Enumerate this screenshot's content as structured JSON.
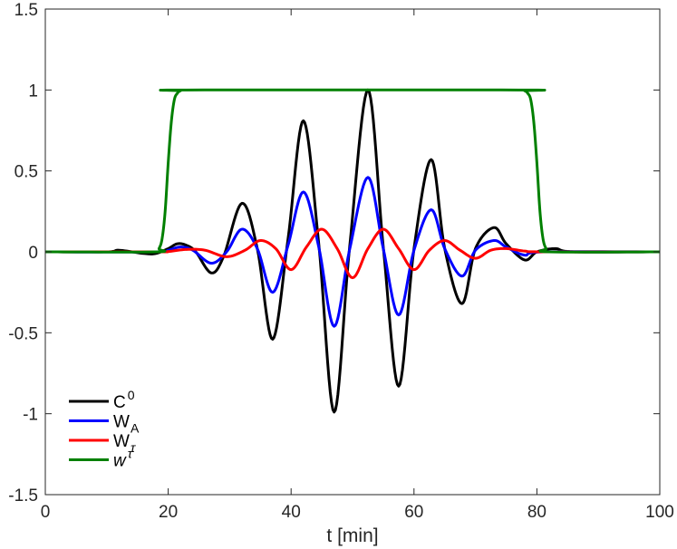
{
  "chart_data": {
    "type": "line",
    "xlabel": "t [min]",
    "ylabel": "",
    "title": "",
    "xlim": [
      0,
      100
    ],
    "ylim": [
      -1.5,
      1.5
    ],
    "xticks": [
      "0",
      "20",
      "40",
      "60",
      "80",
      "100"
    ],
    "yticks": [
      "1.5",
      "1",
      "0.5",
      "0",
      "-0.5",
      "-1",
      "-1.5"
    ],
    "grid": false,
    "legend_position": "bottom-left",
    "series": [
      {
        "name": "C0",
        "legend_main": "C",
        "legend_sup": "0",
        "color": "#000000",
        "x": [
          0,
          10,
          12,
          16,
          18,
          20,
          21.5,
          23,
          24.5,
          27,
          29,
          32,
          34.5,
          37,
          39.5,
          42,
          44.5,
          47,
          49.5,
          52.5,
          55,
          57.5,
          60,
          62.8,
          65,
          67.8,
          70,
          73,
          75,
          78,
          80,
          83,
          86,
          100
        ],
        "y": [
          0,
          0,
          0.01,
          -0.01,
          -0.01,
          0.02,
          0.05,
          0.04,
          0,
          -0.13,
          -0.03,
          0.3,
          0.02,
          -0.54,
          0.08,
          0.81,
          0.05,
          -0.99,
          0.02,
          1.0,
          0.03,
          -0.83,
          0.02,
          0.57,
          0.02,
          -0.32,
          0.02,
          0.15,
          0.05,
          -0.05,
          0,
          0.02,
          0,
          0
        ]
      },
      {
        "name": "WA",
        "legend_main": "W",
        "legend_sub": "A",
        "color": "#0000ff",
        "x": [
          0,
          18,
          20,
          22,
          24,
          27,
          29.5,
          32,
          34.5,
          37,
          39.5,
          42,
          44.5,
          47,
          49.5,
          52.5,
          55,
          57.5,
          60,
          62.8,
          65,
          67.8,
          70,
          73,
          75,
          78,
          81,
          100
        ],
        "y": [
          0,
          0,
          0.01,
          0.03,
          0.01,
          -0.07,
          0,
          0.14,
          0.02,
          -0.25,
          0.04,
          0.37,
          0.03,
          -0.46,
          0.01,
          0.46,
          0.02,
          -0.39,
          0.01,
          0.26,
          0.02,
          -0.15,
          0.01,
          0.07,
          0.03,
          -0.02,
          0,
          0
        ]
      },
      {
        "name": "Wτ",
        "legend_main": "W",
        "legend_sub": "τ",
        "color": "#ff0000",
        "x": [
          0,
          18,
          20,
          23,
          26,
          29.5,
          32.5,
          35,
          37.5,
          40,
          42.5,
          45,
          47.5,
          50,
          52.5,
          55,
          57.5,
          60,
          62.5,
          65,
          67.5,
          70,
          72.5,
          75,
          78,
          81,
          100
        ],
        "y": [
          0,
          0,
          0.002,
          0.015,
          0.01,
          -0.03,
          0.01,
          0.07,
          0.02,
          -0.11,
          0.03,
          0.14,
          0.02,
          -0.16,
          0.02,
          0.14,
          0.02,
          -0.11,
          0.01,
          0.07,
          0.01,
          -0.04,
          0.01,
          0.02,
          0.005,
          0,
          0
        ]
      },
      {
        "name": "w",
        "legend_main": "w",
        "legend_sup": "τ",
        "color": "#008000",
        "x": [
          0,
          18,
          18.5,
          19,
          19.5,
          20,
          20.5,
          21,
          21.5,
          22,
          23,
          77,
          78,
          78.5,
          79,
          79.5,
          80,
          80.5,
          81,
          81.5,
          82,
          100
        ],
        "y": [
          0,
          0,
          0.02,
          0.08,
          0.25,
          0.55,
          0.8,
          0.94,
          0.98,
          0.995,
          1.0,
          1.0,
          0.995,
          0.98,
          0.94,
          0.8,
          0.55,
          0.25,
          0.08,
          0.02,
          0,
          0
        ]
      }
    ]
  }
}
